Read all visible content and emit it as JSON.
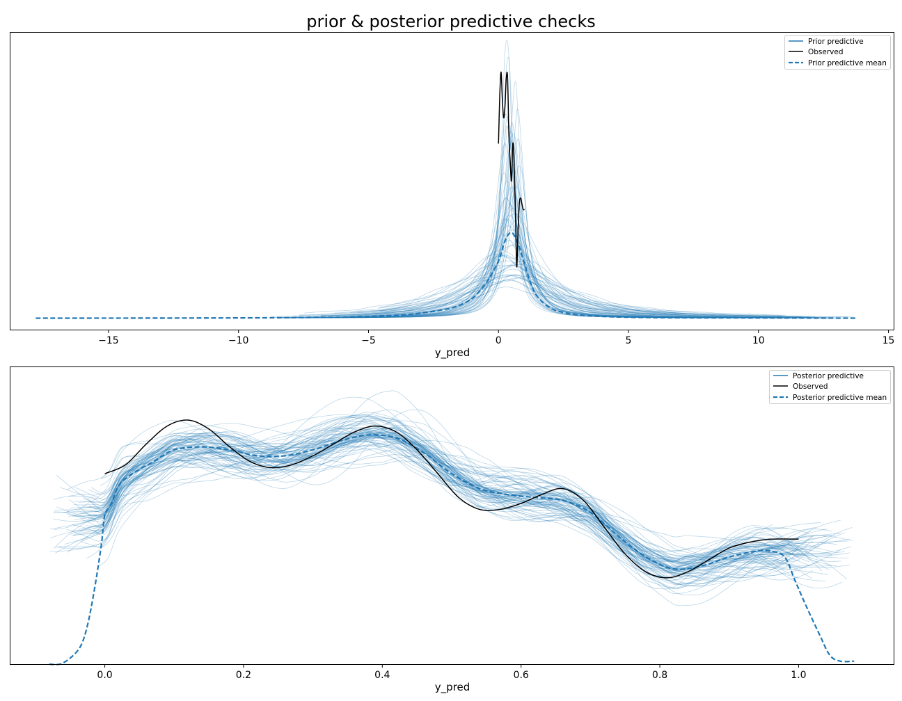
{
  "figure": {
    "suptitle": "prior & posterior predictive checks"
  },
  "chart_data": [
    {
      "type": "line",
      "xlabel": "y_pred",
      "ylabel": "",
      "xlim": [
        -18.8,
        15.2
      ],
      "ylim": [
        -0.04,
        1.0
      ],
      "xticks": [
        -15,
        -10,
        -5,
        0,
        5,
        10,
        15
      ],
      "xtick_labels": [
        "−15",
        "−10",
        "−5",
        "0",
        "5",
        "10",
        "15"
      ],
      "yticks_visible": false,
      "legend": {
        "placement": "top-right",
        "entries": [
          "Prior predictive",
          "Observed",
          "Prior predictive mean"
        ]
      },
      "series": [
        {
          "name": "Prior predictive",
          "style": "thin-transparent",
          "color": "#1f77b4",
          "count": 60,
          "description_range": {
            "x": [
              -9,
              13.8
            ],
            "peak_x": [
              0.2,
              0.8
            ],
            "peak_y": [
              0.05,
              0.95
            ]
          }
        },
        {
          "name": "Observed",
          "color": "#000000",
          "x": [
            0.0,
            0.05,
            0.1,
            0.15,
            0.2,
            0.25,
            0.3,
            0.35,
            0.4,
            0.45,
            0.5,
            0.55,
            0.6,
            0.65,
            0.7,
            0.75,
            0.8,
            0.85,
            0.9,
            0.95,
            1.0
          ],
          "y": [
            0.61,
            0.78,
            0.86,
            0.76,
            0.7,
            0.74,
            0.84,
            0.84,
            0.64,
            0.55,
            0.48,
            0.61,
            0.55,
            0.38,
            0.18,
            0.3,
            0.4,
            0.42,
            0.4,
            0.38,
            0.38
          ]
        },
        {
          "name": "Prior predictive mean",
          "color": "#1f77b4",
          "dashed": true,
          "x": [
            -17.8,
            -10,
            -6,
            -4,
            -3,
            -2,
            -1.5,
            -1,
            -0.5,
            0,
            0.25,
            0.5,
            0.75,
            1,
            1.25,
            1.5,
            2,
            2.5,
            3,
            4,
            6,
            10,
            13.8
          ],
          "y": [
            0.0,
            0.001,
            0.004,
            0.01,
            0.018,
            0.032,
            0.045,
            0.07,
            0.12,
            0.2,
            0.27,
            0.3,
            0.26,
            0.19,
            0.12,
            0.075,
            0.035,
            0.02,
            0.012,
            0.006,
            0.002,
            0.001,
            0.0
          ]
        }
      ]
    },
    {
      "type": "line",
      "xlabel": "y_pred",
      "ylabel": "",
      "xlim": [
        -0.137,
        1.137
      ],
      "ylim": [
        0.0,
        1.0
      ],
      "xticks": [
        0.0,
        0.2,
        0.4,
        0.6,
        0.8,
        1.0
      ],
      "xtick_labels": [
        "0.0",
        "0.2",
        "0.4",
        "0.6",
        "0.8",
        "1.0"
      ],
      "yticks_visible": false,
      "legend": {
        "placement": "top-right",
        "entries": [
          "Posterior predictive",
          "Observed",
          "Posterior predictive mean"
        ]
      },
      "series": [
        {
          "name": "Posterior predictive",
          "style": "thin-transparent",
          "color": "#1f77b4",
          "count": 80,
          "description_range": {
            "x": [
              -0.08,
              1.08
            ]
          }
        },
        {
          "name": "Observed",
          "color": "#000000",
          "x": [
            0.0,
            0.03,
            0.06,
            0.09,
            0.12,
            0.15,
            0.18,
            0.21,
            0.24,
            0.27,
            0.3,
            0.33,
            0.36,
            0.39,
            0.42,
            0.45,
            0.48,
            0.51,
            0.54,
            0.57,
            0.6,
            0.63,
            0.66,
            0.69,
            0.72,
            0.75,
            0.78,
            0.81,
            0.84,
            0.87,
            0.9,
            0.93,
            0.96,
            1.0
          ],
          "y": [
            0.64,
            0.67,
            0.74,
            0.8,
            0.82,
            0.79,
            0.73,
            0.68,
            0.66,
            0.67,
            0.7,
            0.74,
            0.78,
            0.8,
            0.78,
            0.72,
            0.64,
            0.56,
            0.52,
            0.52,
            0.54,
            0.57,
            0.59,
            0.55,
            0.46,
            0.37,
            0.31,
            0.29,
            0.31,
            0.35,
            0.39,
            0.41,
            0.42,
            0.42
          ]
        },
        {
          "name": "Posterior predictive mean",
          "color": "#1f77b4",
          "dashed": true,
          "x": [
            -0.08,
            -0.065,
            -0.05,
            -0.035,
            -0.025,
            -0.015,
            -0.005,
            0.0,
            0.01,
            0.02,
            0.04,
            0.07,
            0.1,
            0.14,
            0.18,
            0.22,
            0.26,
            0.3,
            0.34,
            0.38,
            0.42,
            0.46,
            0.5,
            0.54,
            0.58,
            0.62,
            0.66,
            0.7,
            0.74,
            0.78,
            0.82,
            0.86,
            0.9,
            0.94,
            0.96,
            0.98,
            0.995,
            1.01,
            1.03,
            1.045,
            1.06,
            1.08
          ],
          "y": [
            0.0,
            0.0,
            0.02,
            0.06,
            0.13,
            0.25,
            0.4,
            0.5,
            0.54,
            0.6,
            0.64,
            0.68,
            0.72,
            0.73,
            0.72,
            0.7,
            0.7,
            0.72,
            0.75,
            0.77,
            0.76,
            0.71,
            0.64,
            0.59,
            0.57,
            0.56,
            0.55,
            0.51,
            0.43,
            0.36,
            0.32,
            0.33,
            0.36,
            0.38,
            0.38,
            0.36,
            0.28,
            0.2,
            0.1,
            0.03,
            0.01,
            0.01
          ]
        }
      ]
    }
  ]
}
